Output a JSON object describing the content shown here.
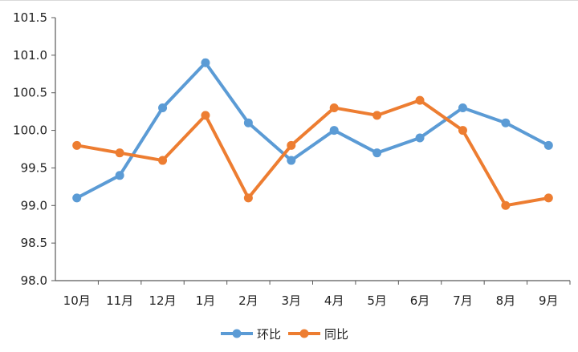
{
  "chart_data": {
    "type": "line",
    "title": "",
    "xlabel": "",
    "ylabel": "",
    "categories": [
      "10月",
      "11月",
      "12月",
      "1月",
      "2月",
      "3月",
      "4月",
      "5月",
      "6月",
      "7月",
      "8月",
      "9月"
    ],
    "ylim": [
      98.0,
      101.5
    ],
    "yticks": [
      "98.0",
      "98.5",
      "99.0",
      "99.5",
      "100.0",
      "100.5",
      "101.0",
      "101.5"
    ],
    "grid": false,
    "legend_position": "bottom-center",
    "series": [
      {
        "name": "环比",
        "color": "#5b9bd5",
        "values": [
          99.1,
          99.4,
          100.3,
          100.9,
          100.1,
          99.6,
          100.0,
          99.7,
          99.9,
          100.3,
          100.1,
          99.8
        ]
      },
      {
        "name": "同比",
        "color": "#ed7d31",
        "values": [
          99.8,
          99.7,
          99.6,
          100.2,
          99.1,
          99.8,
          100.3,
          100.2,
          100.4,
          100.0,
          99.0,
          99.1
        ]
      }
    ]
  }
}
